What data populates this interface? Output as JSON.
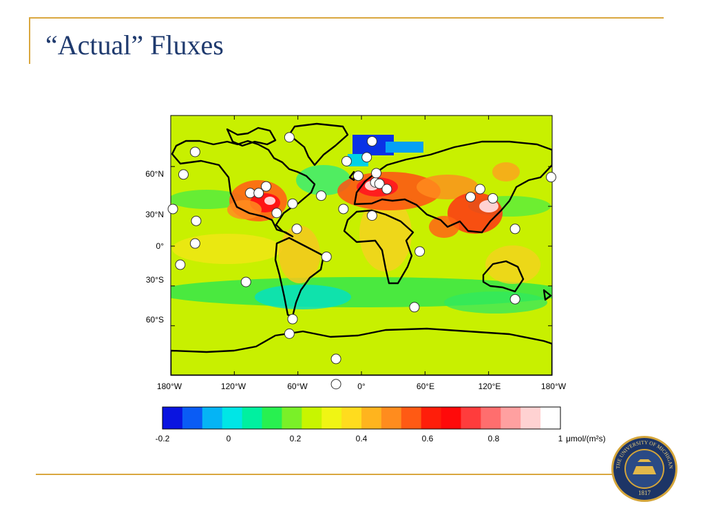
{
  "slide": {
    "title": "“Actual” Fluxes"
  },
  "map": {
    "lat_labels": [
      "60°N",
      "30°N",
      "0°",
      "30°S",
      "60°S"
    ],
    "lon_labels": [
      "180°W",
      "120°W",
      "60°W",
      "0°",
      "60°E",
      "120°E",
      "180°W"
    ],
    "stations": [
      [
        -157,
        71
      ],
      [
        -168,
        54
      ],
      [
        -178,
        28
      ],
      [
        -156,
        19
      ],
      [
        -157,
        2
      ],
      [
        -171,
        -14
      ],
      [
        -109,
        -27
      ],
      [
        -105,
        40
      ],
      [
        -97,
        40
      ],
      [
        -90,
        45
      ],
      [
        -80,
        25
      ],
      [
        -65,
        32
      ],
      [
        -61,
        13
      ],
      [
        -68,
        82
      ],
      [
        -38,
        38
      ],
      [
        -17,
        28
      ],
      [
        -14,
        64
      ],
      [
        -3,
        53
      ],
      [
        -33,
        -8
      ],
      [
        -65,
        -55
      ],
      [
        -68,
        -66
      ],
      [
        -24,
        -85
      ],
      [
        -24,
        -104
      ],
      [
        10,
        79
      ],
      [
        5,
        67
      ],
      [
        10,
        23
      ],
      [
        13,
        48
      ],
      [
        14,
        55
      ],
      [
        17,
        47
      ],
      [
        24,
        43
      ],
      [
        55,
        -4
      ],
      [
        50,
        -46
      ],
      [
        103,
        37
      ],
      [
        112,
        43
      ],
      [
        124,
        36
      ],
      [
        145,
        13
      ],
      [
        145,
        -40
      ],
      [
        179,
        52
      ]
    ]
  },
  "colorbar": {
    "ticks": [
      "-0.2",
      "0",
      "0.2",
      "0.4",
      "0.6",
      "0.8",
      "1"
    ],
    "unit": "μmol/(m²s)",
    "colors": [
      "#0a14e0",
      "#0a5cf5",
      "#05b4f5",
      "#00e6e6",
      "#00f0a0",
      "#28f050",
      "#7af028",
      "#c8f500",
      "#f0f514",
      "#ffdc1e",
      "#ffb41e",
      "#ff8c1e",
      "#ff5a14",
      "#ff1e0a",
      "#ff0a0a",
      "#ff3c3c",
      "#ff6e6e",
      "#ffa0a0",
      "#ffd2d2",
      "#ffffff"
    ]
  },
  "seal": {
    "text": "THE UNIVERSITY OF MICHIGAN",
    "year": "1817"
  }
}
